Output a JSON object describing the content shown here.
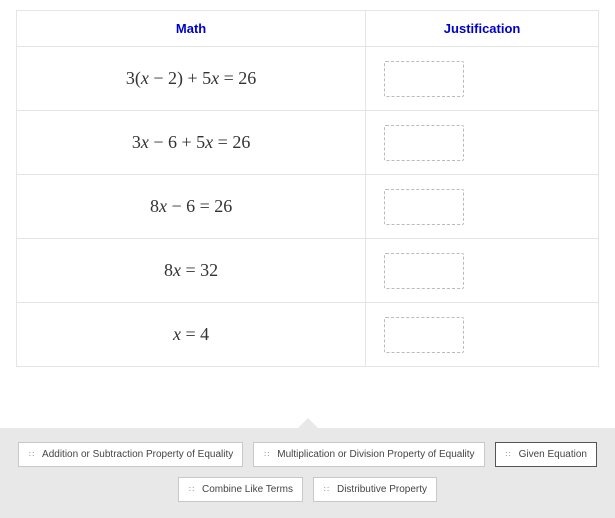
{
  "headers": {
    "math": "Math",
    "justification": "Justification"
  },
  "rows": [
    {
      "equation": "3(x − 2) + 5x = 26"
    },
    {
      "equation": "3x − 6 + 5x = 26"
    },
    {
      "equation": "8x − 6 = 26"
    },
    {
      "equation": "8x = 32"
    },
    {
      "equation": "x = 4"
    }
  ],
  "chips": {
    "row1": [
      "Addition or Subtraction Property of Equality",
      "Multiplication or Division Property of Equality",
      "Given Equation"
    ],
    "row2": [
      "Combine Like Terms",
      "Distributive Property"
    ]
  },
  "style": {
    "header_color": "#0000cc",
    "border_color": "#e5e5e5",
    "dropzone_border": "#bbbbbb",
    "tray_bg": "#e8e8e8",
    "chip_bg": "#ffffff",
    "chip_border": "#c8c8c8",
    "selected_chip_index": 2
  }
}
